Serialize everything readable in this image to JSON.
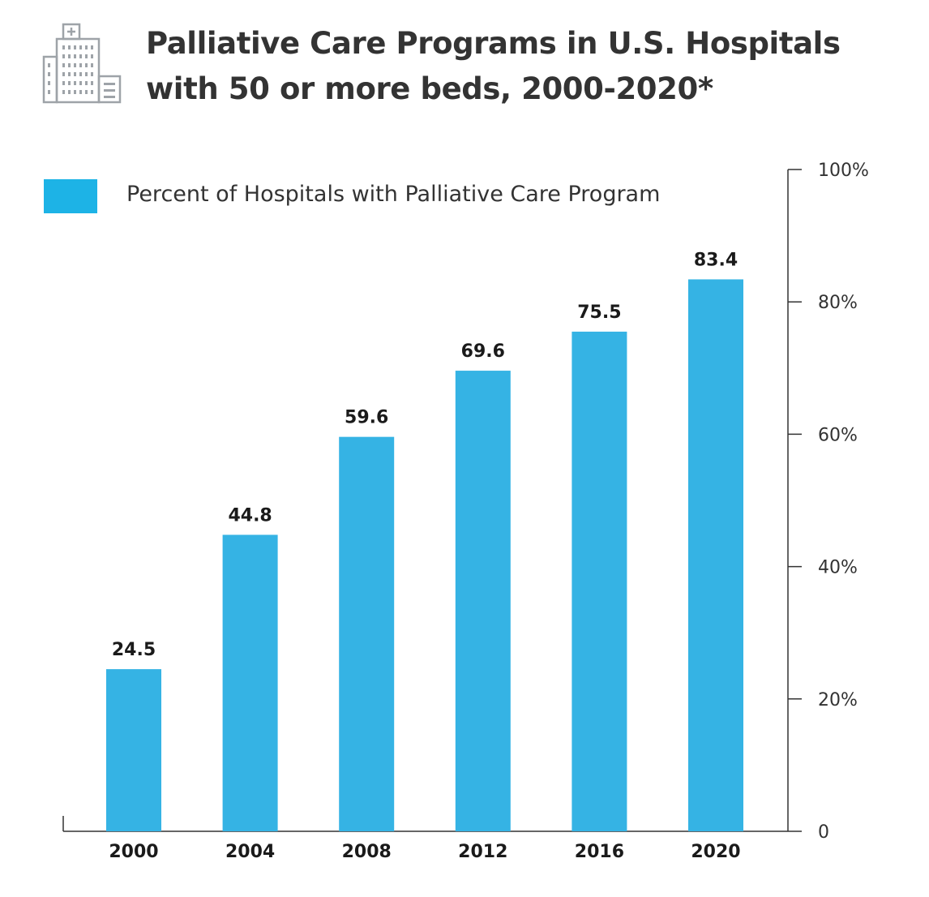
{
  "title_line1": "Palliative Care Programs in U.S. Hospitals",
  "title_line2": "with 50 or more beds, 2000-2020*",
  "legend_label": "Percent of Hospitals with Palliative Care Program",
  "icon": "hospital-building-icon",
  "colors": {
    "bar": "#35b3e4",
    "legend_swatch": "#1db3e6",
    "axis": "#333333",
    "icon": "#9ea3a8"
  },
  "chart_data": {
    "type": "bar",
    "title": "Palliative Care Programs in U.S. Hospitals with 50 or more beds, 2000-2020*",
    "categories": [
      "2000",
      "2004",
      "2008",
      "2012",
      "2016",
      "2020"
    ],
    "series": [
      {
        "name": "Percent of Hospitals with Palliative Care Program",
        "values": [
          24.5,
          44.8,
          59.6,
          69.6,
          75.5,
          83.4
        ]
      }
    ],
    "value_labels": [
      "24.5",
      "44.8",
      "59.6",
      "69.6",
      "75.5",
      "83.4"
    ],
    "y_ticks": [
      0,
      20,
      40,
      60,
      80,
      100
    ],
    "y_tick_labels": [
      "0",
      "20%",
      "40%",
      "60%",
      "80%",
      "100%"
    ],
    "ylim": [
      0,
      100
    ],
    "y_axis_side": "right",
    "grid": false,
    "legend_position": "top-left"
  }
}
